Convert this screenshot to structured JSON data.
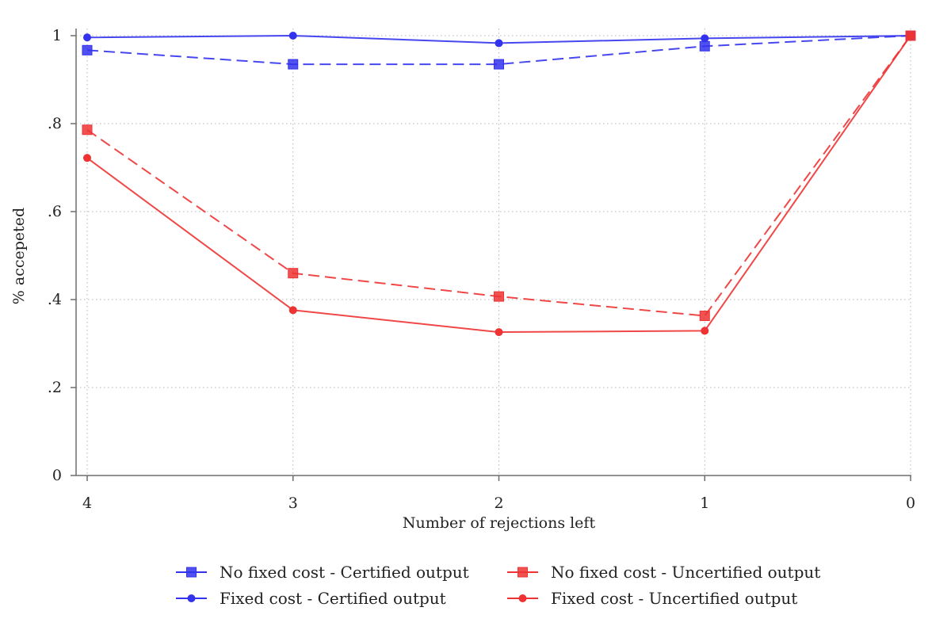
{
  "chart_data": {
    "type": "line",
    "title": "",
    "xlabel": "Number of rejections left",
    "ylabel": "% accepeted",
    "x": [
      4,
      3,
      2,
      1,
      0
    ],
    "x_tick_labels": [
      "4",
      "3",
      "2",
      "1",
      "0"
    ],
    "xlim": [
      4,
      0
    ],
    "ylim": [
      0,
      1
    ],
    "y_ticks": [
      0,
      0.2,
      0.4,
      0.6,
      0.8,
      1
    ],
    "y_tick_labels": [
      "0",
      ".2",
      ".4",
      ".6",
      ".8",
      "1"
    ],
    "grid": true,
    "legend_position": "bottom",
    "series": [
      {
        "name": "No fixed cost - Certified output",
        "color": "#3333ee",
        "line_style": "dashed",
        "marker": "square",
        "values": [
          0.967,
          0.935,
          0.935,
          0.976,
          1.0
        ]
      },
      {
        "name": "Fixed cost - Certified output",
        "color": "#3333ee",
        "line_style": "solid",
        "marker": "circle",
        "values": [
          0.996,
          1.0,
          0.983,
          0.994,
          1.0
        ]
      },
      {
        "name": "No fixed cost - Uncertified output",
        "color": "#ee3333",
        "line_style": "dashed",
        "marker": "square",
        "values": [
          0.786,
          0.46,
          0.407,
          0.363,
          1.0
        ]
      },
      {
        "name": "Fixed cost - Uncertified output",
        "color": "#ee3333",
        "line_style": "solid",
        "marker": "circle",
        "values": [
          0.722,
          0.376,
          0.326,
          0.329,
          1.0
        ]
      }
    ]
  }
}
